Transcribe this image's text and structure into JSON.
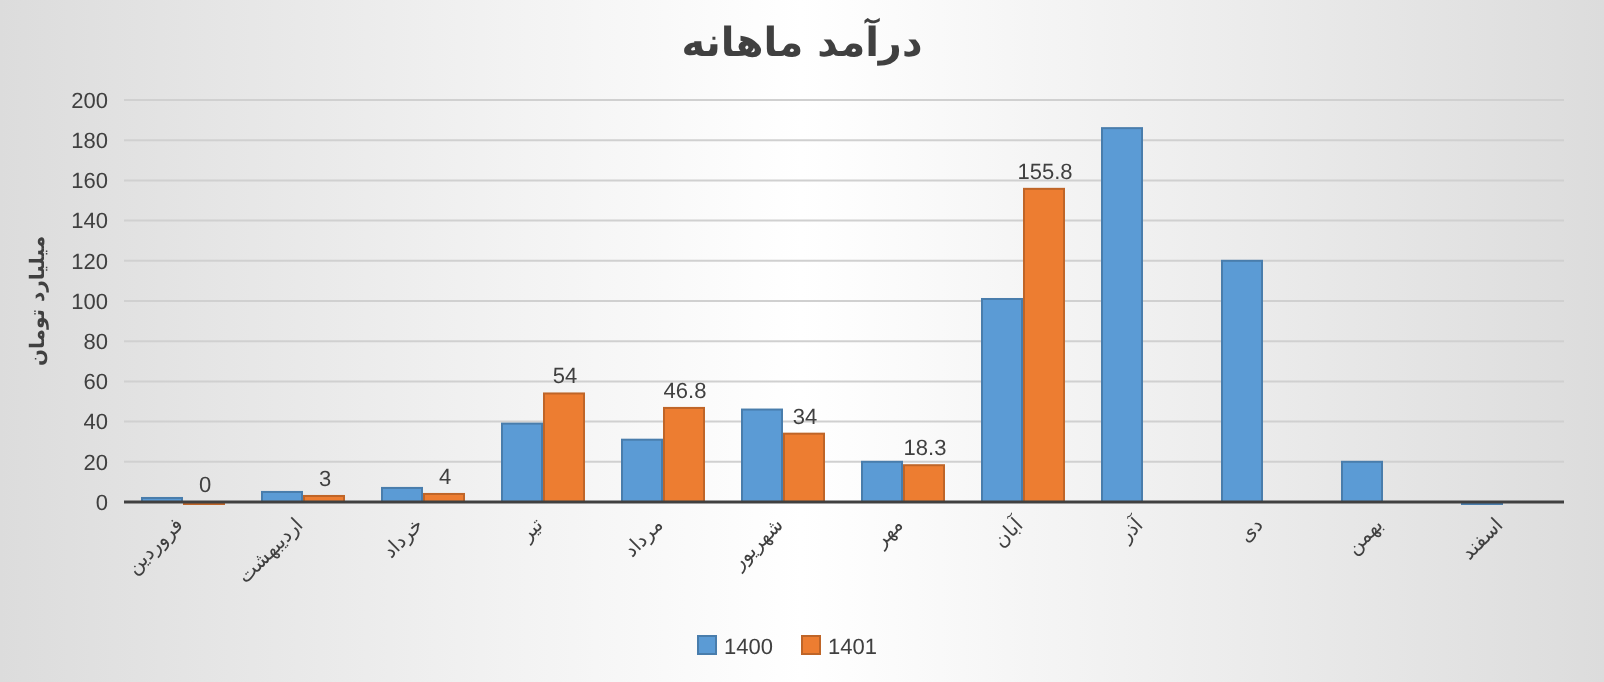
{
  "chart_data": {
    "type": "bar",
    "title": "درآمد ماهانه",
    "ylabel": "میلیارد تومان",
    "categories": [
      "فروردین",
      "اردیبهشت",
      "خرداد",
      "تیر",
      "مرداد",
      "شهریور",
      "مهر",
      "آبان",
      "آذر",
      "دی",
      "بهمن",
      "اسفند"
    ],
    "series": [
      {
        "name": "1400",
        "color": "#5b9bd5",
        "values": [
          2,
          5,
          7,
          39,
          31,
          46,
          20,
          101,
          186,
          120,
          20,
          0
        ]
      },
      {
        "name": "1401",
        "color": "#ed7d31",
        "values": [
          0,
          3,
          4,
          54,
          46.8,
          34,
          18.3,
          155.8,
          null,
          null,
          null,
          null
        ],
        "value_labels": [
          "0",
          "3",
          "4",
          "54",
          "46.8",
          "34",
          "18.3",
          "155.8",
          null,
          null,
          null,
          null
        ]
      }
    ],
    "ylim": [
      0,
      200
    ],
    "yticks": [
      0,
      20,
      40,
      60,
      80,
      100,
      120,
      140,
      160,
      180,
      200
    ],
    "grid": "y",
    "legend": "bottom"
  }
}
